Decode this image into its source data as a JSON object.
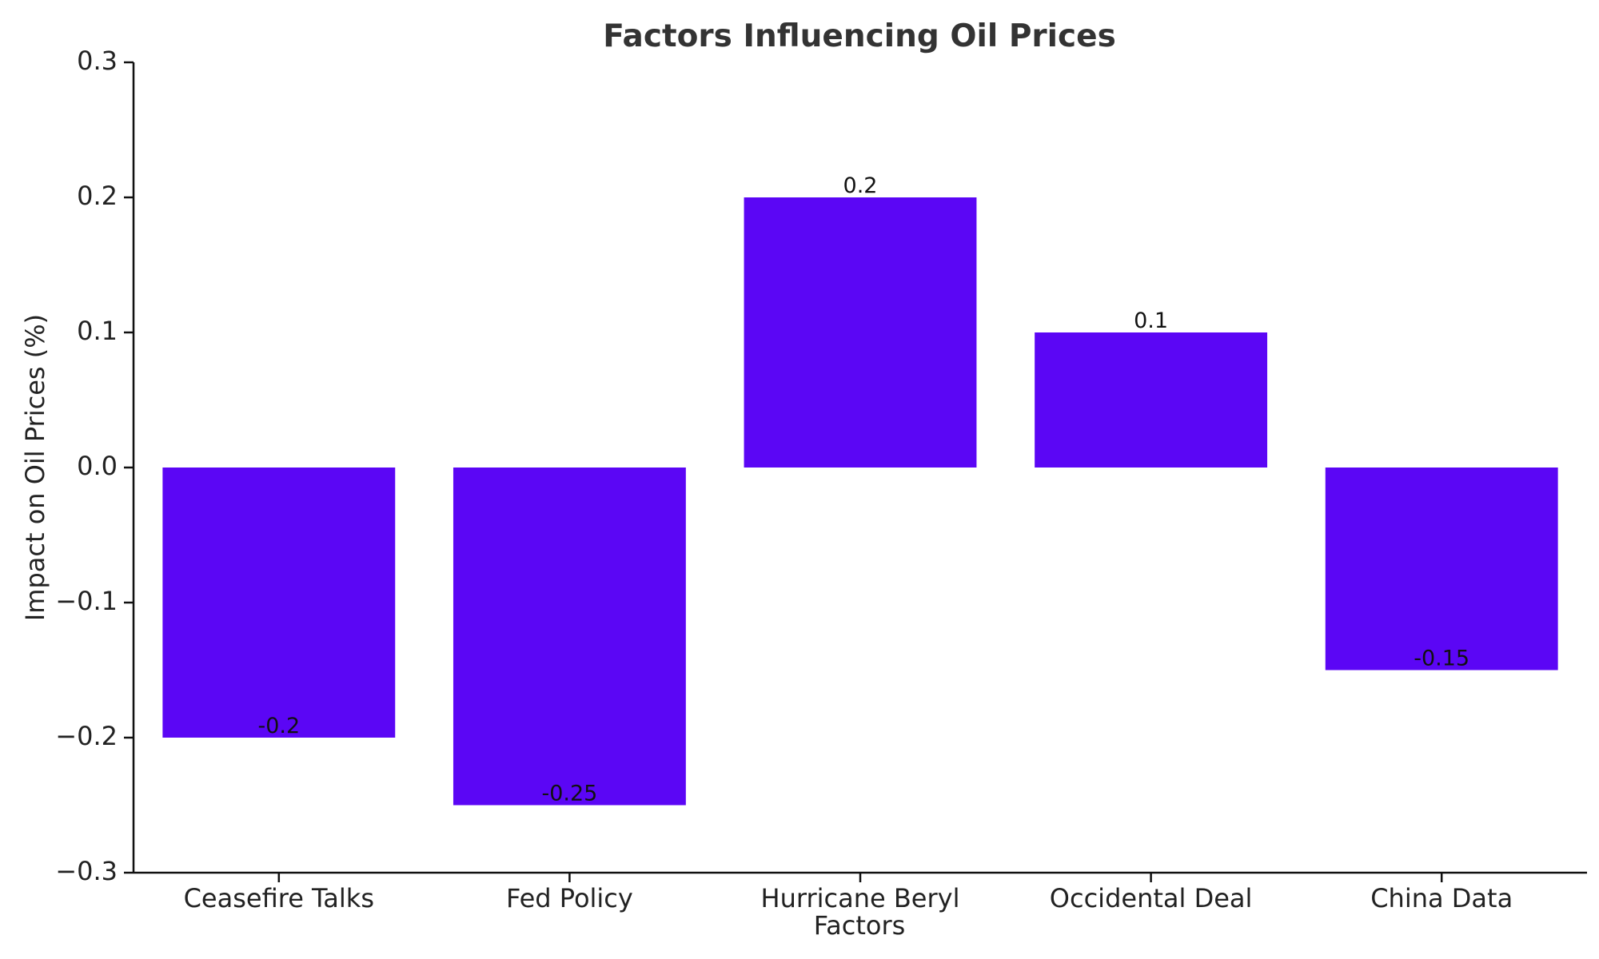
{
  "chart_data": {
    "type": "bar",
    "title": "Factors Influencing Oil Prices",
    "xlabel": "Factors",
    "ylabel": "Impact on Oil Prices (%)",
    "categories": [
      "Ceasefire Talks",
      "Fed Policy",
      "Hurricane Beryl",
      "Occidental Deal",
      "China Data"
    ],
    "values": [
      -0.2,
      -0.25,
      0.2,
      0.1,
      -0.15
    ],
    "value_labels": [
      "-0.2",
      "-0.25",
      "0.2",
      "0.1",
      "-0.15"
    ],
    "ylim": [
      -0.3,
      0.3
    ],
    "yticks": [
      -0.3,
      -0.2,
      -0.1,
      0.0,
      0.1,
      0.2,
      0.3
    ],
    "ytick_labels": [
      "−0.3",
      "−0.2",
      "−0.1",
      "0.0",
      "0.1",
      "0.2",
      "0.3"
    ],
    "bar_color": "#5b06f5",
    "grid": false,
    "legend": "none"
  }
}
